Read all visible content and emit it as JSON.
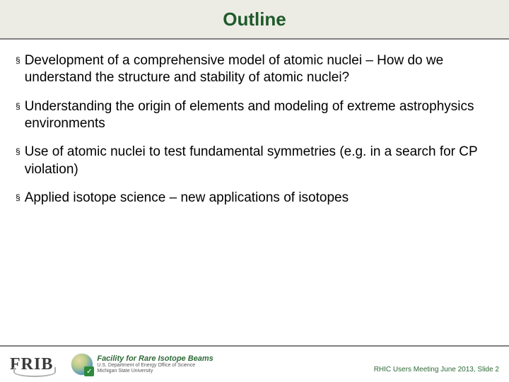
{
  "colors": {
    "header_bg": "#ecece5",
    "header_border": "#808080",
    "title_text": "#1f5a2a",
    "body_text": "#000000",
    "footer_border": "#808080",
    "frib_logo": "#3a3a3a",
    "swoosh": "#b0b0b0",
    "fac_title": "#2d6a36",
    "fac_sub": "#555555",
    "check_bg": "#2d8a3a",
    "page_num": "#2d6a36"
  },
  "typography": {
    "title_fontsize": 26,
    "bullet_fontsize": 19,
    "frib_fontsize": 24,
    "fac_title_fontsize": 11,
    "fac_sub_fontsize": 7,
    "page_num_fontsize": 10
  },
  "title": "Outline",
  "bullets": [
    "Development of a comprehensive model of atomic nuclei – How do we understand the structure and stability of atomic nuclei?",
    "Understanding the origin of elements and modeling of extreme astrophysics environments",
    "Use of atomic nuclei to test fundamental symmetries (e.g. in a search for CP violation)",
    "Applied isotope science – new applications of isotopes"
  ],
  "footer": {
    "frib_text": "FRIB",
    "facility_title": "Facility for Rare Isotope Beams",
    "facility_sub1": "U.S. Department of Energy Office of Science",
    "facility_sub2": "Michigan State University",
    "page_label": "RHIC Users Meeting June 2013, Slide 2"
  }
}
